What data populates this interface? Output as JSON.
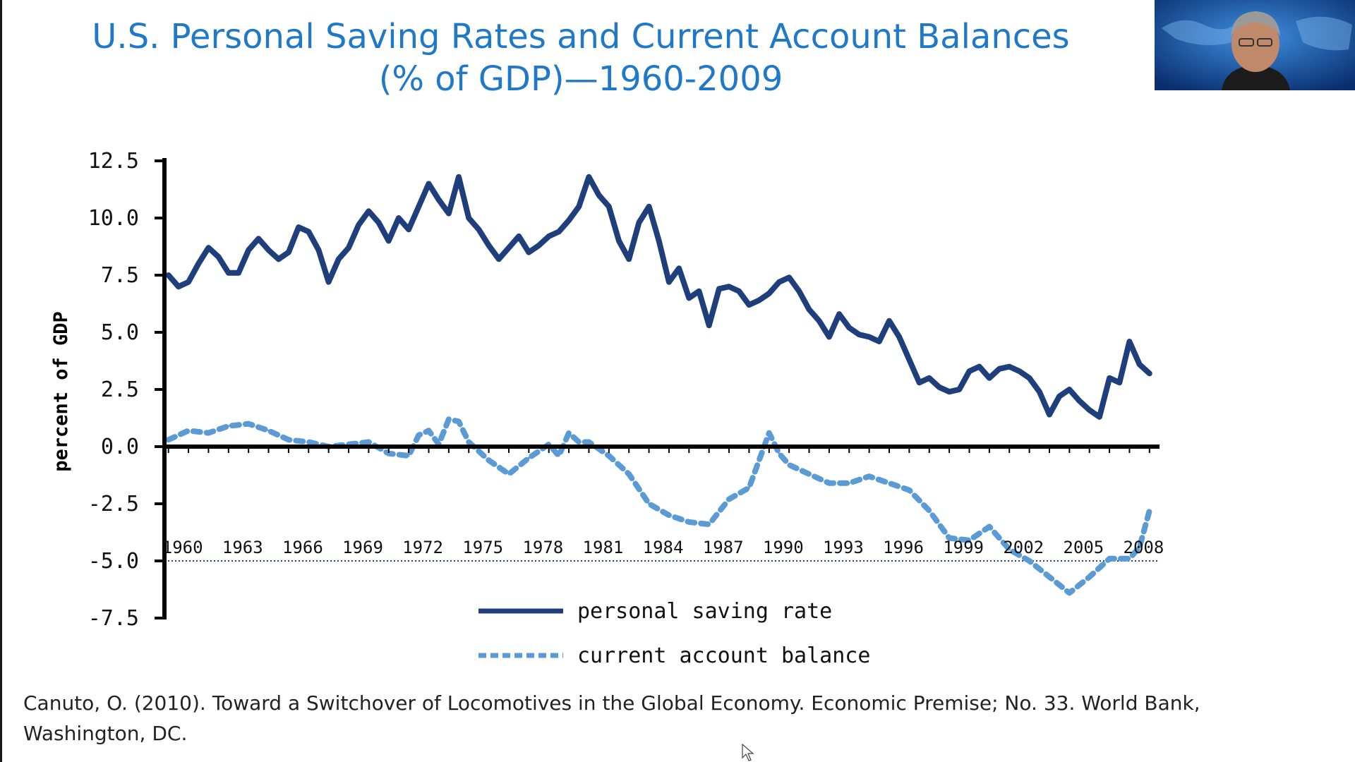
{
  "slide": {
    "title_line1": "U.S. Personal Saving Rates and Current Account Balances",
    "title_line2": "(% of GDP)—1960-2009",
    "citation_line1": "Canuto, O. (2010). Toward a Switchover of Locomotives in the Global Economy. Economic Premise; No. 33. World Bank,",
    "citation_line2": "Washington, DC."
  },
  "colors": {
    "title": "#1f78c8",
    "saving_rate": "#1f3f7c",
    "current_account": "#5b9bd5",
    "axis": "#000000"
  },
  "icons": {
    "cursor": "mouse-pointer-icon",
    "webcam": "presenter-webcam"
  },
  "chart_data": {
    "type": "line",
    "ylabel": "percent of GDP",
    "ylim": [
      -7.5,
      12.5
    ],
    "xlim": [
      1959.8,
      2009.5
    ],
    "yticks": [
      "12.5",
      "10.0",
      "7.5",
      "5.0",
      "2.5",
      "0.0",
      "-2.5",
      "-5.0",
      "-7.5"
    ],
    "xticks": [
      "1960",
      "1963",
      "1966",
      "1969",
      "1972",
      "1975",
      "1978",
      "1981",
      "1984",
      "1987",
      "1990",
      "1993",
      "1996",
      "1999",
      "2002",
      "2005",
      "2008"
    ],
    "reference_line": -5.0,
    "legend": [
      "personal saving rate",
      "current account balance"
    ],
    "legend_position": "bottom-center",
    "series": [
      {
        "name": "personal saving rate",
        "style": "solid",
        "x": [
          1960,
          1960.5,
          1961,
          1961.5,
          1962,
          1962.5,
          1963,
          1963.5,
          1964,
          1964.5,
          1965,
          1965.5,
          1966,
          1966.5,
          1967,
          1967.5,
          1968,
          1968.5,
          1969,
          1969.5,
          1970,
          1970.5,
          1971,
          1971.5,
          1972,
          1972.5,
          1973,
          1973.5,
          1974,
          1974.5,
          1975,
          1975.5,
          1976,
          1976.5,
          1977,
          1977.5,
          1978,
          1978.5,
          1979,
          1979.5,
          1980,
          1980.5,
          1981,
          1981.5,
          1982,
          1982.5,
          1983,
          1983.5,
          1984,
          1984.5,
          1985,
          1985.5,
          1986,
          1986.5,
          1987,
          1987.5,
          1988,
          1988.5,
          1989,
          1989.5,
          1990,
          1990.5,
          1991,
          1991.5,
          1992,
          1992.5,
          1993,
          1993.5,
          1994,
          1994.5,
          1995,
          1995.5,
          1996,
          1996.5,
          1997,
          1997.5,
          1998,
          1998.5,
          1999,
          1999.5,
          2000,
          2000.5,
          2001,
          2001.5,
          2002,
          2002.5,
          2003,
          2003.5,
          2004,
          2004.5,
          2005,
          2005.5,
          2006,
          2006.5,
          2007,
          2007.5,
          2008,
          2008.5,
          2009
        ],
        "values": [
          7.5,
          7.0,
          7.2,
          8.0,
          8.7,
          8.3,
          7.6,
          7.6,
          8.6,
          9.1,
          8.6,
          8.2,
          8.5,
          9.6,
          9.4,
          8.6,
          7.2,
          8.2,
          8.7,
          9.7,
          10.3,
          9.8,
          9.0,
          10.0,
          9.5,
          10.5,
          11.5,
          10.8,
          10.2,
          11.8,
          10.0,
          9.5,
          8.8,
          8.2,
          8.7,
          9.2,
          8.5,
          8.8,
          9.2,
          9.4,
          9.9,
          10.5,
          11.8,
          11.0,
          10.5,
          9.0,
          8.2,
          9.8,
          10.5,
          9.0,
          7.2,
          7.8,
          6.5,
          6.8,
          5.3,
          6.9,
          7.0,
          6.8,
          6.2,
          6.4,
          6.7,
          7.2,
          7.4,
          6.8,
          6.0,
          5.5,
          4.8,
          5.8,
          5.2,
          4.9,
          4.8,
          4.6,
          5.5,
          4.8,
          3.8,
          2.8,
          3.0,
          2.6,
          2.4,
          2.5,
          3.3,
          3.5,
          3.0,
          3.4,
          3.5,
          3.3,
          3.0,
          2.4,
          1.4,
          2.2,
          2.5,
          2.0,
          1.6,
          1.3,
          3.0,
          2.8,
          4.6,
          3.6,
          3.2
        ]
      },
      {
        "name": "current account balance",
        "style": "dashed",
        "x": [
          1960,
          1961,
          1962,
          1963,
          1964,
          1965,
          1966,
          1967,
          1968,
          1969,
          1970,
          1971,
          1972,
          1972.5,
          1973,
          1973.5,
          1974,
          1974.5,
          1975,
          1976,
          1977,
          1978,
          1979,
          1979.5,
          1980,
          1980.5,
          1981,
          1982,
          1983,
          1984,
          1985,
          1986,
          1987,
          1988,
          1989,
          1990,
          1990.5,
          1991,
          1992,
          1993,
          1994,
          1995,
          1996,
          1997,
          1998,
          1999,
          2000,
          2001,
          2002,
          2003,
          2004,
          2005,
          2006,
          2007,
          2008,
          2008.5,
          2009
        ],
        "values": [
          0.3,
          0.7,
          0.6,
          0.9,
          1.0,
          0.7,
          0.3,
          0.2,
          0.0,
          0.1,
          0.2,
          -0.3,
          -0.4,
          0.5,
          0.7,
          0.1,
          1.2,
          1.1,
          0.2,
          -0.6,
          -1.2,
          -0.5,
          0.1,
          -0.4,
          0.6,
          0.2,
          0.2,
          -0.4,
          -1.2,
          -2.5,
          -3.0,
          -3.3,
          -3.4,
          -2.3,
          -1.8,
          0.6,
          -0.3,
          -0.8,
          -1.2,
          -1.6,
          -1.6,
          -1.3,
          -1.6,
          -1.9,
          -2.8,
          -4.0,
          -4.1,
          -3.5,
          -4.5,
          -5.0,
          -5.7,
          -6.4,
          -5.7,
          -4.9,
          -4.9,
          -4.4,
          -2.8
        ]
      }
    ]
  }
}
